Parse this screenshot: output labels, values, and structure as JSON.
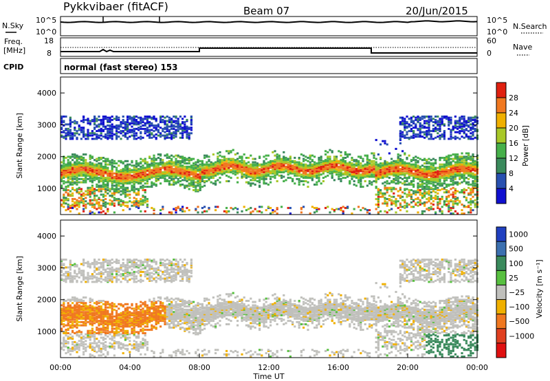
{
  "header": {
    "station": "Pykkvibaer (fitACF)",
    "beam": "Beam 07",
    "date": "20/Jun/2015"
  },
  "panels": {
    "nsky": {
      "left_label": "N.Sky",
      "left_tick_top": "10^5",
      "left_tick_bottom": "10^0",
      "right_tick_top": "10^5",
      "right_tick_bottom": "10^0",
      "right_label": "N.Search"
    },
    "freq": {
      "left_label_1": "Freq.",
      "left_label_2": "[MHz]",
      "left_tick_top": "18",
      "left_tick_bottom": "8",
      "right_tick_top": "60",
      "right_tick_bottom": "0",
      "right_label": "Nave"
    },
    "cpid": {
      "label": "CPID",
      "text": "normal (fast stereo) 153"
    }
  },
  "chart_data": [
    {
      "type": "heatmap",
      "title": "",
      "ylabel": "Slant Range [km]",
      "xlabel": "",
      "yticks": [
        "1000",
        "2000",
        "3000",
        "4000"
      ],
      "ylim": [
        180,
        4500
      ],
      "xlim": [
        0,
        24
      ],
      "colorbar": {
        "label": "Power [dB]",
        "ticks": [
          "4",
          "8",
          "12",
          "16",
          "20",
          "24",
          "28"
        ],
        "colors": [
          "#1010d0",
          "#2850b0",
          "#3a8a5c",
          "#46b04a",
          "#a8c828",
          "#f0b000",
          "#f07820",
          "#e02010"
        ]
      },
      "series": [
        {
          "value": "power",
          "bands": [
            [
              0,
              8,
              1250,
              1700
            ],
            [
              8,
              18,
              1400,
              1800
            ],
            [
              18,
              24,
              1300,
              1700
            ]
          ]
        }
      ]
    },
    {
      "type": "heatmap",
      "title": "",
      "ylabel": "Slant Range [km]",
      "xlabel": "Time UT",
      "yticks": [
        "1000",
        "2000",
        "3000",
        "4000"
      ],
      "xticks": [
        "00:00",
        "04:00",
        "08:00",
        "12:00",
        "16:00",
        "20:00",
        "00:00"
      ],
      "ylim": [
        180,
        4500
      ],
      "xlim": [
        0,
        24
      ],
      "colorbar": {
        "label": "Velocity [m s⁻¹]",
        "ticks": [
          "1000",
          "500",
          "100",
          "25",
          "−25",
          "−100",
          "−500",
          "−1000"
        ],
        "colors": [
          "#2040c0",
          "#3c70b0",
          "#3a8a5c",
          "#58c040",
          "#c0c0bc",
          "#f0b000",
          "#f07820",
          "#e04020",
          "#e01010"
        ]
      },
      "series": [
        {
          "value": "velocity",
          "note": ""
        }
      ]
    }
  ],
  "axis": {
    "nsky_scale_note": "",
    "freq_scale_note": ""
  }
}
